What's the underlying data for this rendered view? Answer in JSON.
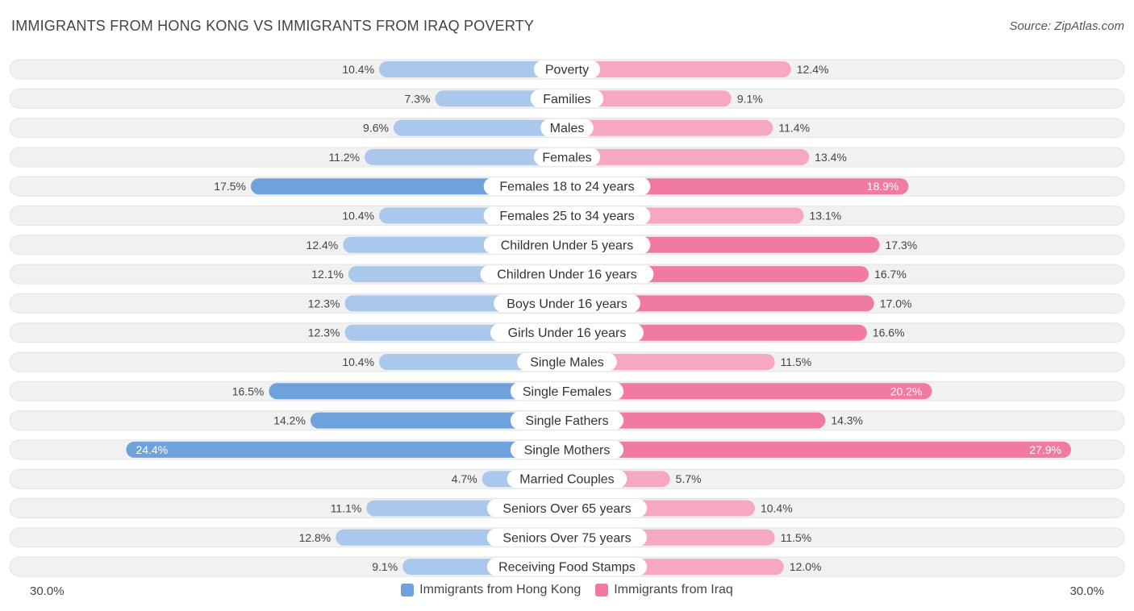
{
  "title": "IMMIGRANTS FROM HONG KONG VS IMMIGRANTS FROM IRAQ POVERTY",
  "source": "Source: ZipAtlas.com",
  "colors": {
    "hong_kong": "#6fa2dd",
    "hong_kong_light": "#a9c8ec",
    "iraq": "#f07aa0",
    "iraq_light": "#f6a8c2",
    "row_bg": "#f1f1f1",
    "label_bg": "#ffffff"
  },
  "chart_data": {
    "type": "bar",
    "orientation": "diverging-horizontal",
    "title": "IMMIGRANTS FROM HONG KONG VS IMMIGRANTS FROM IRAQ POVERTY",
    "unit": "%",
    "xlim": [
      -30,
      30
    ],
    "axis_left_label": "30.0%",
    "axis_right_label": "30.0%",
    "legend_position": "bottom-center",
    "categories": [
      "Poverty",
      "Families",
      "Males",
      "Females",
      "Females 18 to 24 years",
      "Females 25 to 34 years",
      "Children Under 5 years",
      "Children Under 16 years",
      "Boys Under 16 years",
      "Girls Under 16 years",
      "Single Males",
      "Single Females",
      "Single Fathers",
      "Single Mothers",
      "Married Couples",
      "Seniors Over 65 years",
      "Seniors Over 75 years",
      "Receiving Food Stamps"
    ],
    "series": [
      {
        "name": "Immigrants from Hong Kong",
        "side": "left",
        "values": [
          10.4,
          7.3,
          9.6,
          11.2,
          17.5,
          10.4,
          12.4,
          12.1,
          12.3,
          12.3,
          10.4,
          16.5,
          14.2,
          24.4,
          4.7,
          11.1,
          12.8,
          9.1
        ],
        "labels": [
          "10.4%",
          "7.3%",
          "9.6%",
          "11.2%",
          "17.5%",
          "10.4%",
          "12.4%",
          "12.1%",
          "12.3%",
          "12.3%",
          "10.4%",
          "16.5%",
          "14.2%",
          "24.4%",
          "4.7%",
          "11.1%",
          "12.8%",
          "9.1%"
        ]
      },
      {
        "name": "Immigrants from Iraq",
        "side": "right",
        "values": [
          12.4,
          9.1,
          11.4,
          13.4,
          18.9,
          13.1,
          17.3,
          16.7,
          17.0,
          16.6,
          11.5,
          20.2,
          14.3,
          27.9,
          5.7,
          10.4,
          11.5,
          12.0
        ],
        "labels": [
          "12.4%",
          "9.1%",
          "11.4%",
          "13.4%",
          "18.9%",
          "13.1%",
          "17.3%",
          "16.7%",
          "17.0%",
          "16.6%",
          "11.5%",
          "20.2%",
          "14.3%",
          "27.9%",
          "5.7%",
          "10.4%",
          "11.5%",
          "12.0%"
        ]
      }
    ]
  },
  "legend": {
    "hong_kong": "Immigrants from Hong Kong",
    "iraq": "Immigrants from Iraq"
  }
}
